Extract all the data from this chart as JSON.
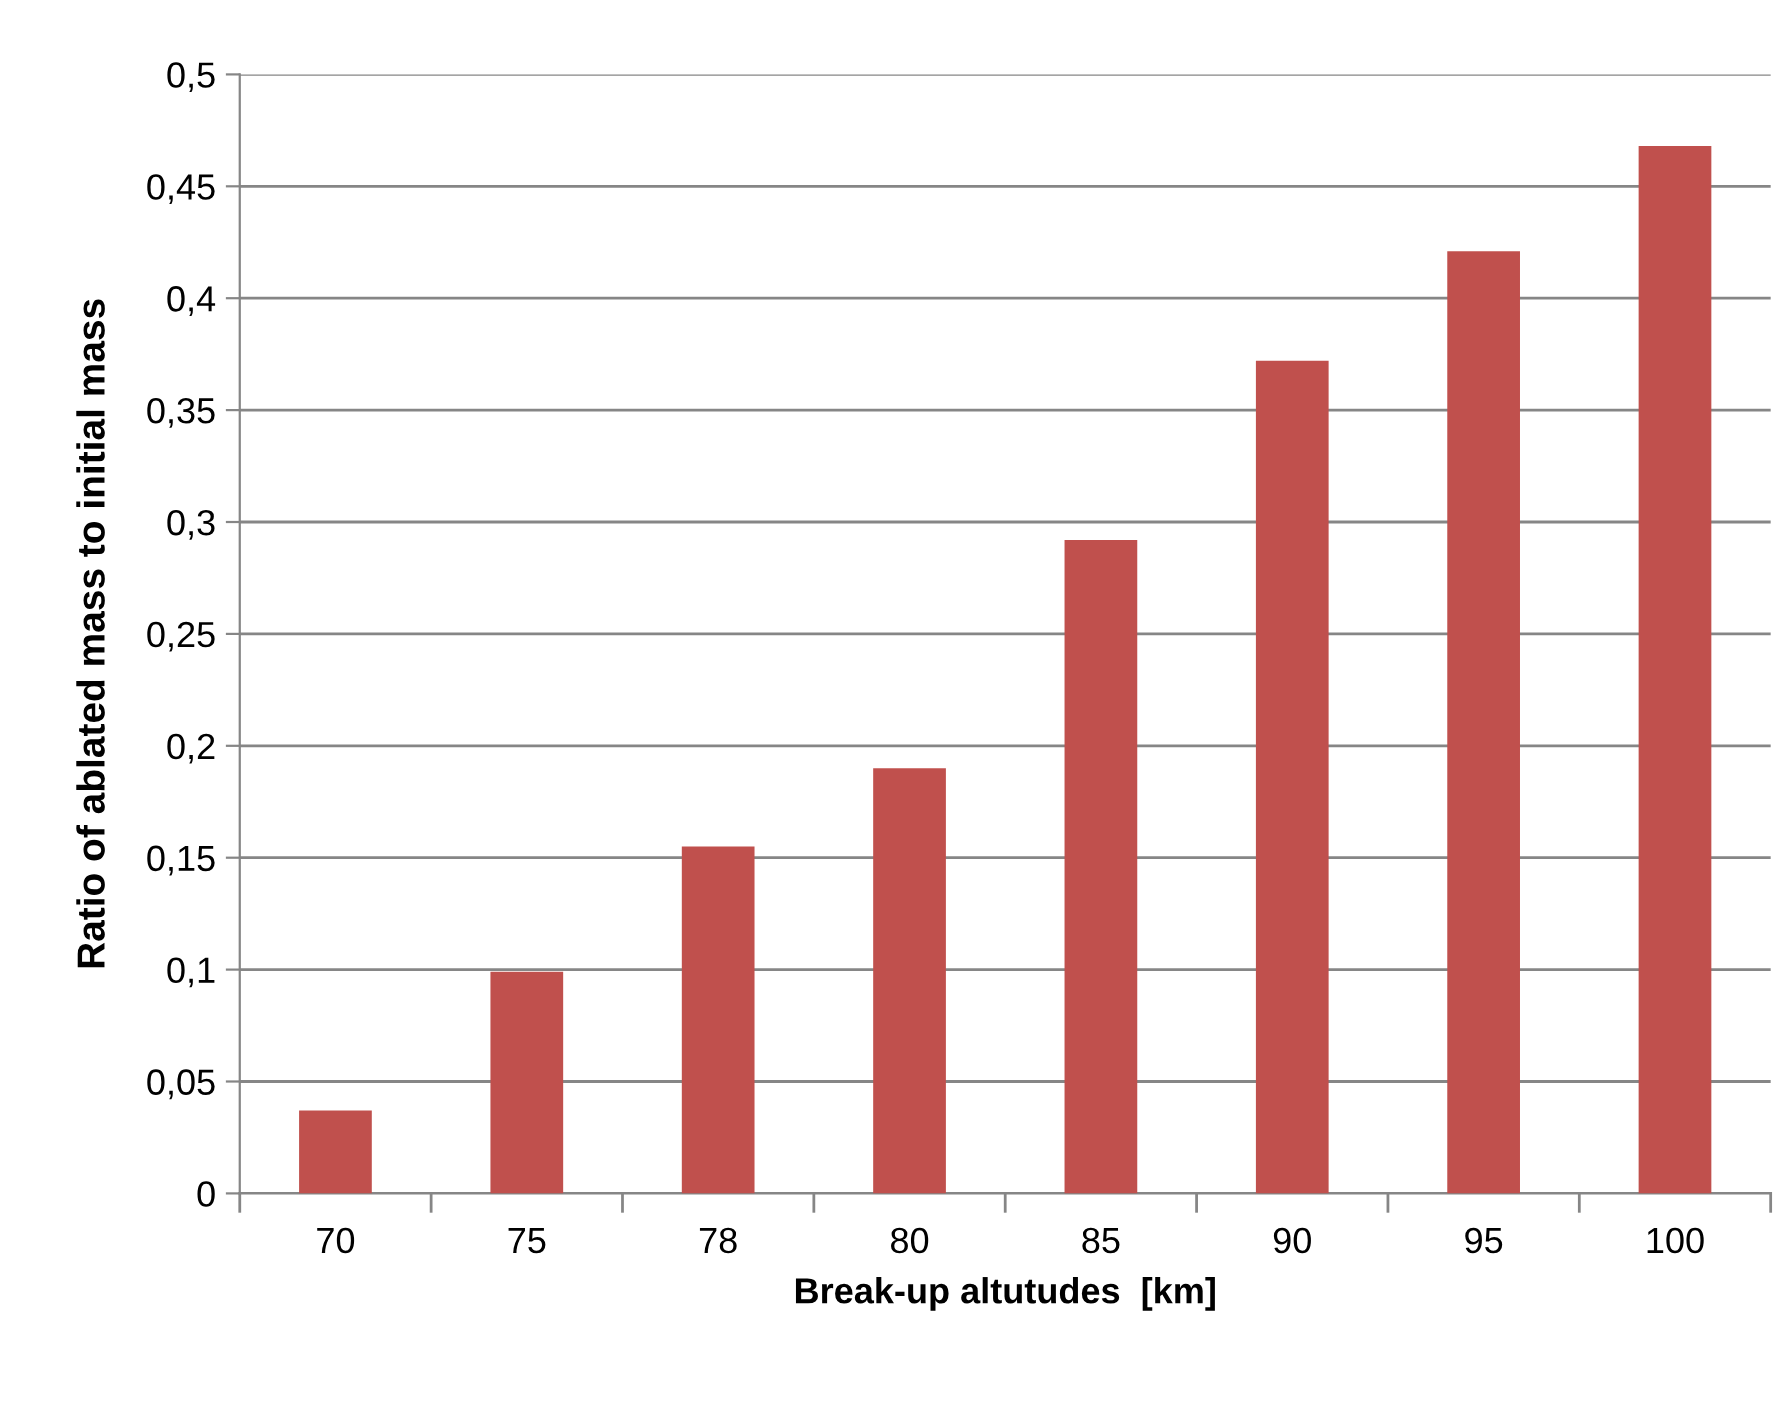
{
  "chart_data": {
    "type": "bar",
    "xlabel": "Break-up altutudes  [km]",
    "ylabel": "Ratio of ablated mass to initial mass",
    "categories": [
      "70",
      "75",
      "78",
      "80",
      "85",
      "90",
      "95",
      "100"
    ],
    "values": [
      0.037,
      0.099,
      0.155,
      0.19,
      0.292,
      0.372,
      0.421,
      0.468
    ],
    "color": "#c0504d",
    "ylim": [
      0,
      0.5
    ],
    "yticks": [
      0,
      {
        "value": 0.05,
        "label": "0,05"
      },
      {
        "value": 0.1,
        "label": "0,1"
      },
      {
        "value": 0.15,
        "label": "0,15"
      },
      {
        "value": 0.2,
        "label": "0,2"
      },
      {
        "value": 0.25,
        "label": "0,25"
      },
      {
        "value": 0.3,
        "label": "0,3"
      },
      {
        "value": 0.35,
        "label": "0,35"
      },
      {
        "value": 0.4,
        "label": "0,4"
      },
      {
        "value": 0.45,
        "label": "0,45"
      },
      {
        "value": 0.5,
        "label": "0,5"
      }
    ],
    "grid": "y"
  }
}
